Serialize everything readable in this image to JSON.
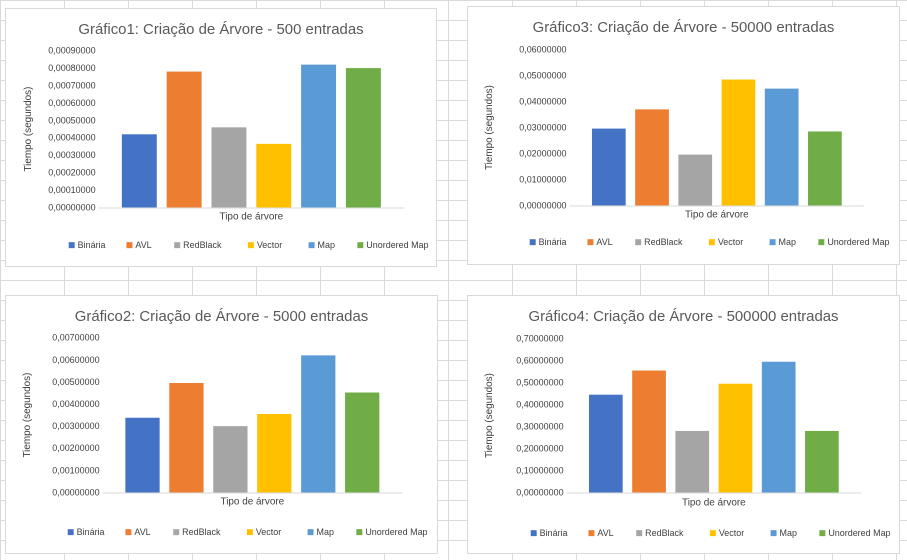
{
  "legend_colors": [
    "#4472C4",
    "#ED7D31",
    "#A5A5A5",
    "#FFC000",
    "#5B9BD5",
    "#70AD47"
  ],
  "chart_data": [
    {
      "id": "grafico1",
      "type": "bar",
      "title": "Gráfico1: Criação de  Árvore - 500 entradas",
      "xlabel": "Tipo de árvore",
      "ylabel": "Tiempo (segundos)",
      "ylim": [
        0,
        0.0009
      ],
      "ytick_step": 0.0001,
      "ytick_labels": [
        "0,00000000",
        "0,00010000",
        "0,00020000",
        "0,00030000",
        "0,00040000",
        "0,00050000",
        "0,00060000",
        "0,00070000",
        "0,00080000",
        "0,00090000"
      ],
      "grid": false,
      "legend_position": "bottom",
      "series": [
        {
          "name": "Binária",
          "values": [
            0.00042
          ]
        },
        {
          "name": "AVL",
          "values": [
            0.00078
          ]
        },
        {
          "name": "RedBlack",
          "values": [
            0.00046
          ]
        },
        {
          "name": "Vector",
          "values": [
            0.000365
          ]
        },
        {
          "name": "Map",
          "values": [
            0.00082
          ]
        },
        {
          "name": "Unordered Map",
          "values": [
            0.0008
          ]
        }
      ]
    },
    {
      "id": "grafico3",
      "type": "bar",
      "title": "Gráfico3: Criação de  Árvore - 50000 entradas",
      "xlabel": "Tipo de árvore",
      "ylabel": "Tiempo (segundos)",
      "ylim": [
        0,
        0.06
      ],
      "ytick_step": 0.01,
      "ytick_labels": [
        "0,00000000",
        "0,01000000",
        "0,02000000",
        "0,03000000",
        "0,04000000",
        "0,05000000",
        "0,06000000"
      ],
      "grid": false,
      "legend_position": "bottom",
      "series": [
        {
          "name": "Binária",
          "values": [
            0.0296
          ]
        },
        {
          "name": "AVL",
          "values": [
            0.037
          ]
        },
        {
          "name": "RedBlack",
          "values": [
            0.0196
          ]
        },
        {
          "name": "Vector",
          "values": [
            0.0485
          ]
        },
        {
          "name": "Map",
          "values": [
            0.045
          ]
        },
        {
          "name": "Unordered Map",
          "values": [
            0.0285
          ]
        }
      ]
    },
    {
      "id": "grafico2",
      "type": "bar",
      "title": "Gráfico2: Criação de  Árvore - 5000 entradas",
      "xlabel": "Tipo de árvore",
      "ylabel": "Tiempo (segundos)",
      "ylim": [
        0,
        0.007
      ],
      "ytick_step": 0.001,
      "ytick_labels": [
        "0,00000000",
        "0,00100000",
        "0,00200000",
        "0,00300000",
        "0,00400000",
        "0,00500000",
        "0,00600000",
        "0,00700000"
      ],
      "grid": false,
      "legend_position": "bottom",
      "series": [
        {
          "name": "Binária",
          "values": [
            0.00338
          ]
        },
        {
          "name": "AVL",
          "values": [
            0.00495
          ]
        },
        {
          "name": "RedBlack",
          "values": [
            0.003
          ]
        },
        {
          "name": "Vector",
          "values": [
            0.00355
          ]
        },
        {
          "name": "Map",
          "values": [
            0.0062
          ]
        },
        {
          "name": "Unordered Map",
          "values": [
            0.00452
          ]
        }
      ]
    },
    {
      "id": "grafico4",
      "type": "bar",
      "title": "Gráfico4: Criação de  Árvore - 500000 entradas",
      "xlabel": "Tipo de árvore",
      "ylabel": "Tiempo (segundos)",
      "ylim": [
        0,
        0.7
      ],
      "ytick_step": 0.1,
      "ytick_labels": [
        "0,00000000",
        "0,10000000",
        "0,20000000",
        "0,30000000",
        "0,40000000",
        "0,50000000",
        "0,60000000",
        "0,70000000"
      ],
      "grid": false,
      "legend_position": "bottom",
      "series": [
        {
          "name": "Binária",
          "values": [
            0.445
          ]
        },
        {
          "name": "AVL",
          "values": [
            0.555
          ]
        },
        {
          "name": "RedBlack",
          "values": [
            0.28
          ]
        },
        {
          "name": "Vector",
          "values": [
            0.495
          ]
        },
        {
          "name": "Map",
          "values": [
            0.595
          ]
        },
        {
          "name": "Unordered Map",
          "values": [
            0.28
          ]
        }
      ]
    }
  ]
}
